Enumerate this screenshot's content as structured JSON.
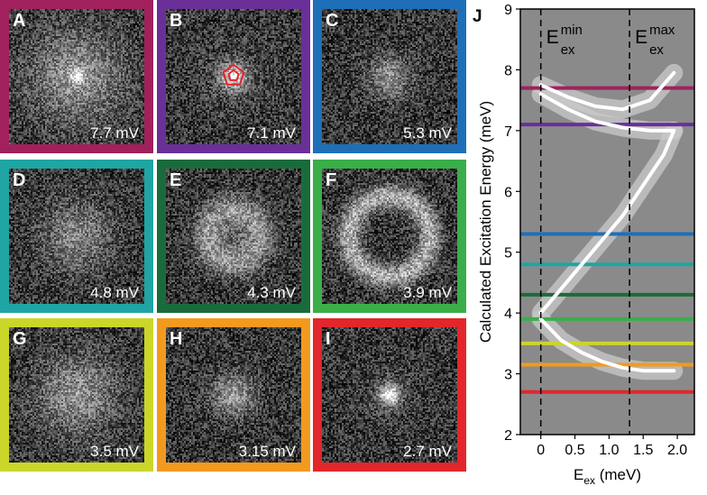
{
  "panels": [
    {
      "letter": "A",
      "bias": "7.7 mV",
      "border": "#a0215c",
      "pattern": "center-spot"
    },
    {
      "letter": "B",
      "bias": "7.1 mV",
      "border": "#6a2f98",
      "pattern": "bright-spot-pentagon"
    },
    {
      "letter": "C",
      "bias": "5.3 mV",
      "border": "#1e6fb8",
      "pattern": "small-spot"
    },
    {
      "letter": "D",
      "bias": "4.8 mV",
      "border": "#1fa5a3",
      "pattern": "diffuse"
    },
    {
      "letter": "E",
      "bias": "4.3 mV",
      "border": "#1a6b3c",
      "pattern": "ring"
    },
    {
      "letter": "F",
      "bias": "3.9 mV",
      "border": "#3aae49",
      "pattern": "large-ring"
    },
    {
      "letter": "G",
      "bias": "3.5 mV",
      "border": "#cbd62a",
      "pattern": "broad"
    },
    {
      "letter": "H",
      "bias": "3.15 mV",
      "border": "#f39a1e",
      "pattern": "spot"
    },
    {
      "letter": "I",
      "bias": "2.7 mV",
      "border": "#e2262b",
      "pattern": "tight-spot"
    }
  ],
  "chart_data": {
    "type": "line",
    "panel_letter": "J",
    "xlabel": "E",
    "xlabel_sub": "ex",
    "xlabel_unit": " (meV)",
    "ylabel": "Calculated Excitation Energy (meV)",
    "xlim": [
      -0.3,
      2.25
    ],
    "ylim": [
      2,
      9
    ],
    "xticks": [
      0,
      0.5,
      1.0,
      1.5,
      2.0
    ],
    "xtick_labels": [
      "0",
      "0.5",
      "1.0",
      "1.5",
      "2.0"
    ],
    "yticks": [
      2,
      3,
      4,
      5,
      6,
      7,
      8,
      9
    ],
    "ytick_labels": [
      "2",
      "3",
      "4",
      "5",
      "6",
      "7",
      "8",
      "9"
    ],
    "background": "#8a8a8a",
    "vlines": [
      {
        "x": 0,
        "label_main": "E",
        "label_sup": "min",
        "label_sub": "ex"
      },
      {
        "x": 1.3,
        "label_main": "E",
        "label_sup": "max",
        "label_sub": "ex"
      }
    ],
    "hlines": [
      {
        "y": 7.7,
        "color": "#a0215c"
      },
      {
        "y": 7.1,
        "color": "#6a2f98"
      },
      {
        "y": 5.3,
        "color": "#1e6fb8"
      },
      {
        "y": 4.8,
        "color": "#1fa5a3"
      },
      {
        "y": 4.3,
        "color": "#1a6b3c"
      },
      {
        "y": 3.9,
        "color": "#3aae49"
      },
      {
        "y": 3.5,
        "color": "#cbd62a"
      },
      {
        "y": 3.15,
        "color": "#f39a1e"
      },
      {
        "y": 2.7,
        "color": "#e2262b"
      }
    ],
    "series": [
      {
        "x": [
          0,
          0.4,
          0.8,
          1.2,
          1.6,
          1.95
        ],
        "y": [
          7.75,
          7.55,
          7.4,
          7.35,
          7.5,
          7.95
        ]
      },
      {
        "x": [
          0,
          0.4,
          0.8,
          1.2,
          1.6,
          1.95
        ],
        "y": [
          7.6,
          7.35,
          7.15,
          7.05,
          7.0,
          7.0
        ]
      },
      {
        "x": [
          0,
          0.3,
          0.6,
          0.9,
          1.2,
          1.5,
          1.8,
          1.95
        ],
        "y": [
          4.0,
          4.4,
          4.8,
          5.2,
          5.6,
          6.1,
          6.6,
          7.0
        ]
      },
      {
        "x": [
          0,
          0.3,
          0.6,
          0.9,
          1.2,
          1.5,
          1.8,
          1.95
        ],
        "y": [
          3.9,
          3.55,
          3.35,
          3.2,
          3.1,
          3.05,
          3.05,
          3.05
        ]
      }
    ],
    "band_color": "#c9c9c9",
    "line_color": "#ffffff"
  }
}
